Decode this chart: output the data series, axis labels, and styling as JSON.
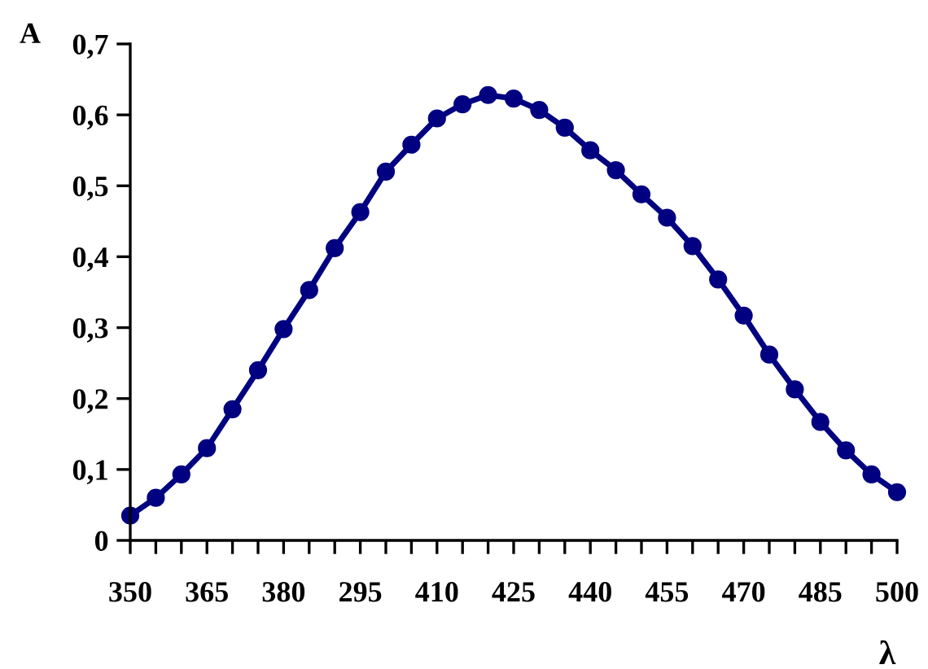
{
  "chart_data": {
    "type": "line",
    "xlabel": "λ",
    "ylabel": "A",
    "categories": [
      "350",
      null,
      null,
      "365",
      null,
      null,
      "380",
      null,
      null,
      "295",
      null,
      null,
      "410",
      null,
      null,
      "425",
      null,
      null,
      "440",
      null,
      null,
      "455",
      null,
      null,
      "470",
      null,
      null,
      "485",
      null,
      null,
      "500"
    ],
    "series": [
      {
        "color": "#000080",
        "values": [
          0.035,
          0.06,
          0.093,
          0.13,
          0.185,
          0.24,
          0.298,
          0.353,
          0.412,
          0.463,
          0.52,
          0.558,
          0.595,
          0.615,
          0.628,
          0.623,
          0.607,
          0.582,
          0.55,
          0.522,
          0.488,
          0.455,
          0.415,
          0.368,
          0.317,
          0.262,
          0.213,
          0.167,
          0.127,
          0.093,
          0.068
        ]
      }
    ],
    "ylim": [
      0,
      0.7
    ],
    "yticks": [
      0,
      {
        "value": 0.1,
        "label": "0,1"
      },
      {
        "value": 0.2,
        "label": "0,2"
      },
      {
        "value": 0.3,
        "label": "0,3"
      },
      {
        "value": 0.4,
        "label": "0,4"
      },
      {
        "value": 0.5,
        "label": "0,5"
      },
      {
        "value": 0.6,
        "label": "0,6"
      },
      {
        "value": 0.7,
        "label": "0,7"
      }
    ],
    "grid": false,
    "legend": false,
    "marker": "circle",
    "line_style": "solid"
  }
}
